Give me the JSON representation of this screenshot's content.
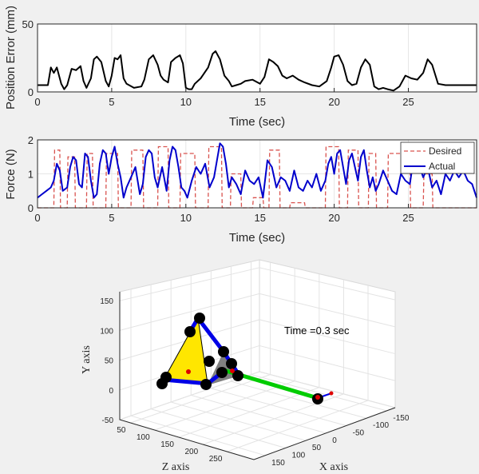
{
  "colors": {
    "figure_bg": "#f0f0f0",
    "axes_bg": "#ffffff",
    "position_line": "#000000",
    "desired_line": "#d9534f",
    "actual_line": "#0000cc",
    "triangle_fill": "#ffe600",
    "triangle_shadow": "#808080",
    "link_blue": "#0000e6",
    "link_green": "#00cc00",
    "joint": "#000000",
    "marker_red": "#dd0000"
  },
  "chart_data": [
    {
      "type": "line",
      "ylabel": "Position Error (mm)",
      "xlabel": "Time (sec)",
      "xlim": [
        0,
        29.6
      ],
      "ylim": [
        0,
        50
      ],
      "xticks": [
        "0",
        "5",
        "10",
        "15",
        "20",
        "25"
      ],
      "xtick_values": [
        0,
        5,
        10,
        15,
        20,
        25
      ],
      "yticks": [
        "0",
        "50"
      ],
      "ytick_values": [
        0,
        50
      ],
      "grid": true,
      "series": [
        {
          "x": [
            0,
            0.7,
            0.9,
            1.1,
            1.3,
            1.6,
            1.8,
            2.0,
            2.3,
            2.6,
            2.9,
            3.1,
            3.3,
            3.6,
            3.8,
            4.0,
            4.3,
            4.6,
            4.8,
            5.0,
            5.2,
            5.4,
            5.6,
            5.8,
            6.0,
            6.5,
            7.0,
            7.2,
            7.5,
            7.8,
            8.1,
            8.3,
            8.5,
            8.8,
            9.0,
            9.3,
            9.6,
            9.8,
            10.0,
            10.2,
            10.4,
            10.6,
            11.0,
            11.5,
            11.8,
            12.0,
            12.3,
            12.6,
            12.9,
            13.1,
            13.4,
            13.7,
            14.0,
            14.5,
            15.0,
            15.3,
            15.6,
            15.9,
            16.2,
            16.5,
            16.8,
            17.2,
            17.6,
            18.0,
            18.5,
            19.0,
            19.5,
            19.8,
            20.0,
            20.3,
            20.6,
            20.9,
            21.2,
            21.5,
            21.8,
            22.1,
            22.4,
            22.7,
            23.0,
            23.3,
            23.6,
            24.0,
            24.4,
            24.8,
            25.2,
            25.6,
            26.0,
            26.3,
            26.6,
            27.0,
            27.5,
            28.0,
            29.6
          ],
          "y": [
            5,
            5,
            18,
            14,
            18,
            6,
            2,
            5,
            17,
            16,
            19,
            8,
            3,
            10,
            24,
            26,
            22,
            8,
            4,
            12,
            25,
            24,
            27,
            10,
            6,
            3,
            4,
            9,
            24,
            27,
            20,
            12,
            9,
            7,
            22,
            25,
            27,
            21,
            3,
            2,
            2,
            6,
            10,
            18,
            28,
            30,
            24,
            12,
            8,
            4,
            5,
            6,
            8,
            9,
            6,
            11,
            24,
            22,
            19,
            12,
            10,
            12,
            9,
            7,
            5,
            4,
            8,
            18,
            26,
            27,
            20,
            8,
            5,
            6,
            18,
            24,
            20,
            4,
            2,
            3,
            2,
            1,
            4,
            12,
            10,
            9,
            14,
            24,
            20,
            6,
            5,
            5,
            5
          ]
        }
      ]
    },
    {
      "type": "line",
      "ylabel": "Force (N)",
      "xlabel": "Time (sec)",
      "xlim": [
        0,
        29.6
      ],
      "ylim": [
        0,
        2
      ],
      "xticks": [
        "0",
        "5",
        "10",
        "15",
        "20",
        "25"
      ],
      "xtick_values": [
        0,
        5,
        10,
        15,
        20,
        25
      ],
      "yticks": [
        "0",
        "1",
        "2"
      ],
      "ytick_values": [
        0,
        1,
        2
      ],
      "grid": true,
      "legend": {
        "placement": "top-right",
        "entries": [
          "Desired",
          "Actual"
        ]
      },
      "series": [
        {
          "name": "Desired",
          "style": "dashed",
          "x": [
            0,
            1.1,
            1.15,
            1.5,
            1.55,
            2.0,
            2.05,
            2.5,
            2.55,
            3.3,
            3.35,
            3.7,
            3.75,
            4.6,
            4.65,
            5.4,
            5.45,
            6.3,
            6.35,
            7.1,
            7.15,
            8.1,
            8.15,
            8.8,
            8.85,
            9.6,
            9.65,
            10.6,
            10.65,
            11.5,
            11.55,
            12.4,
            12.45,
            13.0,
            13.05,
            13.7,
            13.75,
            14.5,
            14.55,
            15.2,
            15.25,
            15.6,
            15.65,
            16.3,
            16.35,
            17.0,
            17.05,
            18.0,
            18.05,
            19.4,
            19.45,
            20.3,
            20.35,
            20.9,
            20.95,
            21.6,
            21.65,
            22.3,
            22.35,
            22.8,
            22.85,
            23.6,
            23.65,
            25.1,
            25.15,
            26.0,
            26.05,
            26.6,
            26.65,
            29.6
          ],
          "y": [
            0,
            0,
            1.7,
            1.7,
            0,
            0,
            1.5,
            1.5,
            0,
            0,
            1.6,
            1.6,
            0,
            0,
            1.6,
            1.6,
            0,
            0,
            1.7,
            1.7,
            0,
            0,
            1.8,
            1.8,
            0,
            0,
            1.6,
            1.6,
            0,
            0,
            1.8,
            1.8,
            0,
            0,
            1.0,
            1.0,
            0,
            0,
            0.3,
            0.3,
            0,
            0,
            1.7,
            1.7,
            0,
            0,
            0.15,
            0.15,
            0,
            0,
            1.8,
            1.8,
            0,
            0,
            1.7,
            1.7,
            0,
            0,
            1.6,
            1.6,
            0,
            0,
            1.6,
            1.6,
            0,
            0,
            1.0,
            1.0,
            0,
            0
          ]
        },
        {
          "name": "Actual",
          "style": "solid",
          "x": [
            0,
            0.3,
            0.6,
            0.9,
            1.1,
            1.3,
            1.5,
            1.7,
            2.0,
            2.2,
            2.4,
            2.6,
            2.8,
            3.0,
            3.2,
            3.4,
            3.6,
            3.8,
            4.0,
            4.2,
            4.4,
            4.6,
            4.8,
            5.0,
            5.2,
            5.4,
            5.6,
            5.8,
            6.0,
            6.3,
            6.6,
            6.9,
            7.1,
            7.3,
            7.5,
            7.7,
            7.9,
            8.1,
            8.4,
            8.7,
            8.9,
            9.1,
            9.3,
            9.5,
            9.7,
            9.9,
            10.1,
            10.4,
            10.7,
            11.0,
            11.3,
            11.6,
            11.9,
            12.1,
            12.3,
            12.5,
            12.7,
            12.9,
            13.1,
            13.4,
            13.7,
            14.0,
            14.3,
            14.6,
            14.9,
            15.2,
            15.5,
            15.8,
            16.1,
            16.4,
            16.7,
            17.0,
            17.3,
            17.6,
            17.9,
            18.2,
            18.5,
            18.8,
            19.1,
            19.4,
            19.6,
            19.8,
            20.0,
            20.2,
            20.4,
            20.6,
            20.8,
            21.0,
            21.2,
            21.4,
            21.6,
            21.8,
            22.0,
            22.2,
            22.4,
            22.6,
            22.8,
            23.0,
            23.3,
            23.6,
            23.9,
            24.2,
            24.5,
            24.8,
            25.1,
            25.4,
            25.7,
            26.0,
            26.3,
            26.6,
            26.9,
            27.2,
            27.5,
            27.8,
            28.1,
            28.4,
            28.7,
            29.0,
            29.3,
            29.6
          ],
          "y": [
            0.3,
            0.4,
            0.5,
            0.6,
            0.8,
            1.3,
            1.1,
            0.5,
            0.6,
            1.2,
            1.5,
            1.4,
            0.7,
            0.6,
            1.6,
            1.5,
            0.8,
            0.3,
            0.4,
            1.3,
            1.7,
            1.6,
            1.0,
            1.5,
            1.8,
            1.3,
            0.9,
            0.3,
            0.6,
            0.9,
            1.2,
            0.4,
            0.7,
            1.5,
            1.7,
            1.6,
            0.9,
            0.6,
            1.2,
            0.5,
            1.4,
            1.8,
            1.7,
            1.2,
            0.6,
            0.5,
            0.3,
            0.8,
            1.2,
            1.0,
            1.3,
            0.6,
            0.9,
            1.4,
            1.9,
            1.8,
            1.3,
            0.6,
            0.9,
            0.7,
            0.4,
            1.1,
            0.8,
            0.7,
            0.9,
            0.3,
            1.4,
            1.2,
            0.6,
            0.9,
            0.8,
            0.5,
            1.1,
            0.6,
            0.5,
            0.8,
            0.6,
            1.0,
            0.5,
            0.8,
            1.3,
            1.5,
            1.0,
            1.6,
            1.7,
            1.2,
            0.7,
            1.4,
            1.6,
            1.2,
            0.8,
            1.5,
            1.7,
            1.1,
            0.6,
            0.9,
            0.5,
            0.7,
            1.1,
            0.8,
            0.5,
            0.4,
            1.0,
            0.8,
            0.7,
            1.6,
            1.3,
            0.9,
            1.2,
            0.6,
            0.8,
            0.4,
            1.0,
            0.8,
            1.1,
            0.9,
            1.1,
            0.8,
            0.7,
            0.3
          ]
        }
      ]
    },
    {
      "type": "scatter",
      "kind": "3d-view",
      "xlabel": "X axis",
      "ylabel": "Y axis",
      "zlabel": "Z axis",
      "xticks": [
        "-150",
        "-100",
        "-50",
        "0",
        "50",
        "100",
        "150"
      ],
      "yticks": [
        "-50",
        "0",
        "50",
        "100",
        "150"
      ],
      "zticks": [
        "50",
        "100",
        "150",
        "200",
        "250"
      ],
      "grid": true,
      "annotation": "Time =0.3 sec"
    }
  ]
}
